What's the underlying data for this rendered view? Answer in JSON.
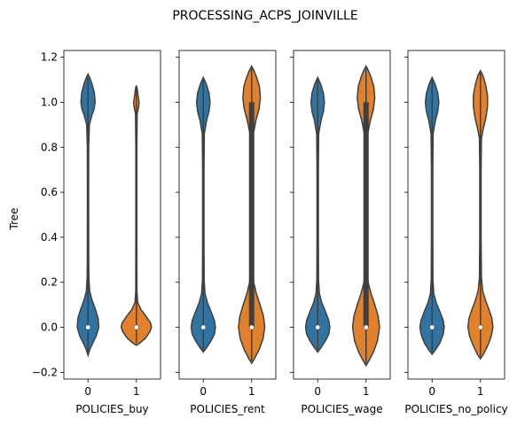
{
  "chart_data": {
    "type": "violin",
    "title": "PROCESSING_ACPS_JOINVILLE",
    "ylabel": "Tree",
    "ylim": [
      -0.23,
      1.23
    ],
    "yticks": [
      "−0.2",
      "0.0",
      "0.2",
      "0.4",
      "0.6",
      "0.8",
      "1.0",
      "1.2"
    ],
    "ytick_values": [
      -0.2,
      0.0,
      0.2,
      0.4,
      0.6,
      0.8,
      1.0,
      1.2
    ],
    "sharey": true,
    "grid": false,
    "colors": {
      "group0": "#3274a1",
      "group1": "#e1812c",
      "edge": "#3f3f3f"
    },
    "panels": [
      {
        "xlabel": "POLICIES_buy",
        "categories": [
          "0",
          "1"
        ],
        "violins": [
          {
            "category": "0",
            "min": -0.12,
            "max": 1.12,
            "median": 0.0,
            "q1": 0.0,
            "q3": 0.0,
            "profile": [
              [
                -0.125,
                0
              ],
              [
                -0.1,
                0.1
              ],
              [
                -0.07,
                0.28
              ],
              [
                -0.04,
                0.48
              ],
              [
                0.0,
                0.64
              ],
              [
                0.04,
                0.6
              ],
              [
                0.08,
                0.44
              ],
              [
                0.12,
                0.24
              ],
              [
                0.16,
                0.1
              ],
              [
                0.22,
                0.05
              ],
              [
                0.35,
                0.04
              ],
              [
                0.6,
                0.035
              ],
              [
                0.8,
                0.04
              ],
              [
                0.9,
                0.08
              ],
              [
                0.94,
                0.22
              ],
              [
                0.97,
                0.36
              ],
              [
                1.0,
                0.42
              ],
              [
                1.04,
                0.38
              ],
              [
                1.08,
                0.24
              ],
              [
                1.11,
                0.1
              ],
              [
                1.125,
                0
              ]
            ]
          },
          {
            "category": "1",
            "min": -0.08,
            "max": 1.07,
            "median": 0.0,
            "q1": 0.0,
            "q3": 0.0,
            "profile": [
              [
                -0.08,
                0
              ],
              [
                -0.07,
                0.2
              ],
              [
                -0.05,
                0.52
              ],
              [
                -0.02,
                0.8
              ],
              [
                0.0,
                0.9
              ],
              [
                0.02,
                0.84
              ],
              [
                0.05,
                0.56
              ],
              [
                0.08,
                0.26
              ],
              [
                0.11,
                0.08
              ],
              [
                0.16,
                0.035
              ],
              [
                0.4,
                0.03
              ],
              [
                0.8,
                0.03
              ],
              [
                0.95,
                0.05
              ],
              [
                0.98,
                0.14
              ],
              [
                1.0,
                0.16
              ],
              [
                1.03,
                0.1
              ],
              [
                1.06,
                0.05
              ],
              [
                1.075,
                0
              ]
            ]
          }
        ]
      },
      {
        "xlabel": "POLICIES_rent",
        "categories": [
          "0",
          "1"
        ],
        "violins": [
          {
            "category": "0",
            "min": -0.11,
            "max": 1.11,
            "median": 0.0,
            "q1": 0.0,
            "q3": 0.0,
            "profile": [
              [
                -0.11,
                0
              ],
              [
                -0.09,
                0.2
              ],
              [
                -0.06,
                0.46
              ],
              [
                -0.03,
                0.66
              ],
              [
                0.0,
                0.72
              ],
              [
                0.03,
                0.66
              ],
              [
                0.07,
                0.46
              ],
              [
                0.11,
                0.24
              ],
              [
                0.15,
                0.1
              ],
              [
                0.21,
                0.05
              ],
              [
                0.4,
                0.04
              ],
              [
                0.7,
                0.04
              ],
              [
                0.86,
                0.06
              ],
              [
                0.92,
                0.2
              ],
              [
                0.96,
                0.34
              ],
              [
                1.0,
                0.4
              ],
              [
                1.04,
                0.34
              ],
              [
                1.08,
                0.18
              ],
              [
                1.1,
                0.06
              ],
              [
                1.11,
                0
              ]
            ]
          },
          {
            "category": "1",
            "min": -0.16,
            "max": 1.16,
            "median": 0.0,
            "q1": 0.0,
            "q3": 1.0,
            "profile": [
              [
                -0.16,
                0
              ],
              [
                -0.14,
                0.16
              ],
              [
                -0.1,
                0.44
              ],
              [
                -0.05,
                0.68
              ],
              [
                0.0,
                0.78
              ],
              [
                0.05,
                0.7
              ],
              [
                0.1,
                0.5
              ],
              [
                0.15,
                0.28
              ],
              [
                0.2,
                0.12
              ],
              [
                0.28,
                0.06
              ],
              [
                0.5,
                0.05
              ],
              [
                0.75,
                0.05
              ],
              [
                0.86,
                0.1
              ],
              [
                0.92,
                0.26
              ],
              [
                0.97,
                0.44
              ],
              [
                1.02,
                0.52
              ],
              [
                1.07,
                0.46
              ],
              [
                1.11,
                0.3
              ],
              [
                1.14,
                0.14
              ],
              [
                1.16,
                0
              ]
            ]
          }
        ]
      },
      {
        "xlabel": "POLICIES_wage",
        "categories": [
          "0",
          "1"
        ],
        "violins": [
          {
            "category": "0",
            "min": -0.11,
            "max": 1.11,
            "median": 0.0,
            "q1": 0.0,
            "q3": 0.0,
            "profile": [
              [
                -0.11,
                0
              ],
              [
                -0.09,
                0.2
              ],
              [
                -0.06,
                0.46
              ],
              [
                -0.03,
                0.66
              ],
              [
                0.0,
                0.72
              ],
              [
                0.03,
                0.66
              ],
              [
                0.07,
                0.46
              ],
              [
                0.11,
                0.24
              ],
              [
                0.15,
                0.1
              ],
              [
                0.21,
                0.05
              ],
              [
                0.4,
                0.04
              ],
              [
                0.7,
                0.04
              ],
              [
                0.86,
                0.06
              ],
              [
                0.92,
                0.2
              ],
              [
                0.96,
                0.34
              ],
              [
                1.0,
                0.4
              ],
              [
                1.04,
                0.34
              ],
              [
                1.08,
                0.18
              ],
              [
                1.1,
                0.06
              ],
              [
                1.11,
                0
              ]
            ]
          },
          {
            "category": "1",
            "min": -0.17,
            "max": 1.16,
            "median": 0.0,
            "q1": 0.0,
            "q3": 1.0,
            "profile": [
              [
                -0.17,
                0
              ],
              [
                -0.15,
                0.16
              ],
              [
                -0.11,
                0.44
              ],
              [
                -0.06,
                0.68
              ],
              [
                0.0,
                0.8
              ],
              [
                0.05,
                0.72
              ],
              [
                0.1,
                0.52
              ],
              [
                0.15,
                0.3
              ],
              [
                0.2,
                0.12
              ],
              [
                0.28,
                0.06
              ],
              [
                0.5,
                0.05
              ],
              [
                0.75,
                0.05
              ],
              [
                0.86,
                0.1
              ],
              [
                0.92,
                0.26
              ],
              [
                0.97,
                0.44
              ],
              [
                1.02,
                0.52
              ],
              [
                1.07,
                0.46
              ],
              [
                1.11,
                0.3
              ],
              [
                1.14,
                0.14
              ],
              [
                1.16,
                0
              ]
            ]
          }
        ]
      },
      {
        "xlabel": "POLICIES_no_policy",
        "categories": [
          "0",
          "1"
        ],
        "violins": [
          {
            "category": "0",
            "min": -0.12,
            "max": 1.11,
            "median": 0.0,
            "q1": 0.0,
            "q3": 0.0,
            "profile": [
              [
                -0.12,
                0
              ],
              [
                -0.1,
                0.2
              ],
              [
                -0.07,
                0.46
              ],
              [
                -0.03,
                0.66
              ],
              [
                0.0,
                0.72
              ],
              [
                0.03,
                0.66
              ],
              [
                0.07,
                0.46
              ],
              [
                0.11,
                0.24
              ],
              [
                0.15,
                0.1
              ],
              [
                0.21,
                0.05
              ],
              [
                0.4,
                0.04
              ],
              [
                0.7,
                0.04
              ],
              [
                0.86,
                0.06
              ],
              [
                0.92,
                0.2
              ],
              [
                0.96,
                0.34
              ],
              [
                1.0,
                0.4
              ],
              [
                1.04,
                0.34
              ],
              [
                1.08,
                0.18
              ],
              [
                1.1,
                0.06
              ],
              [
                1.11,
                0
              ]
            ]
          },
          {
            "category": "1",
            "min": -0.14,
            "max": 1.14,
            "median": 0.0,
            "q1": 0.0,
            "q3": 0.0,
            "profile": [
              [
                -0.14,
                0
              ],
              [
                -0.12,
                0.18
              ],
              [
                -0.08,
                0.44
              ],
              [
                -0.04,
                0.64
              ],
              [
                0.0,
                0.74
              ],
              [
                0.04,
                0.68
              ],
              [
                0.08,
                0.5
              ],
              [
                0.12,
                0.3
              ],
              [
                0.16,
                0.14
              ],
              [
                0.22,
                0.06
              ],
              [
                0.4,
                0.04
              ],
              [
                0.7,
                0.04
              ],
              [
                0.84,
                0.06
              ],
              [
                0.88,
                0.16
              ],
              [
                0.93,
                0.32
              ],
              [
                0.98,
                0.42
              ],
              [
                1.03,
                0.42
              ],
              [
                1.08,
                0.3
              ],
              [
                1.12,
                0.14
              ],
              [
                1.14,
                0
              ]
            ]
          }
        ]
      }
    ]
  }
}
